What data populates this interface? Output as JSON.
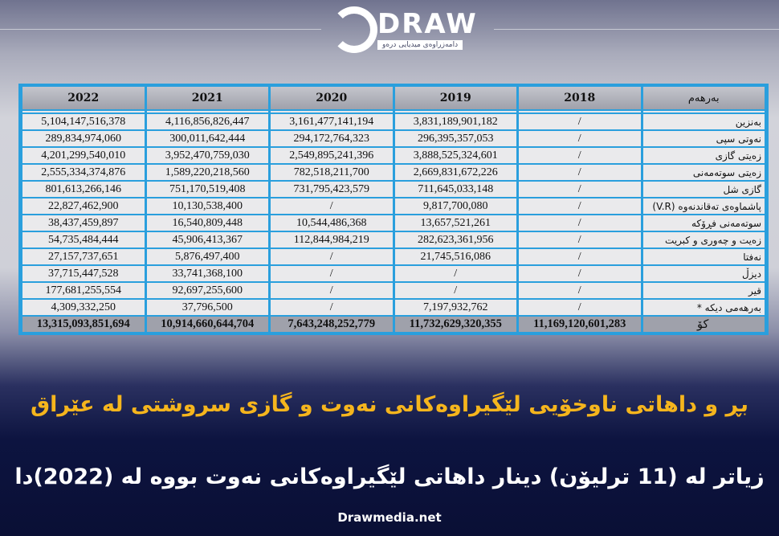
{
  "logo": {
    "text": "DRAW",
    "subtitle": "دامەزراوەی میدیایی درەو"
  },
  "table": {
    "headers": [
      "بەرهەم",
      "2018",
      "2019",
      "2020",
      "2021",
      "2022"
    ],
    "rows": [
      [
        "بەنزین",
        "/",
        "3,831,189,901,182",
        "3,161,477,141,194",
        "4,116,856,826,447",
        "5,104,147,516,378"
      ],
      [
        "نەوتی سپی",
        "/",
        "296,395,357,053",
        "294,172,764,323",
        "300,011,642,444",
        "289,834,974,060"
      ],
      [
        "زەیتی گازی",
        "/",
        "3,888,525,324,601",
        "2,549,895,241,396",
        "3,952,470,759,030",
        "4,201,299,540,010"
      ],
      [
        "زەیتی سوتەمەنی",
        "/",
        "2,669,831,672,226",
        "782,518,211,700",
        "1,589,220,218,560",
        "2,555,334,374,876"
      ],
      [
        "گازی شل",
        "/",
        "711,645,033,148",
        "731,795,423,579",
        "751,170,519,408",
        "801,613,266,146"
      ],
      [
        "پاشماوەی تەقاندنەوە (V.R)",
        "/",
        "9,817,700,080",
        "/",
        "10,130,538,400",
        "22,827,462,900"
      ],
      [
        "سوتەمەنی فڕۆکە",
        "/",
        "13,657,521,261",
        "10,544,486,368",
        "16,540,809,448",
        "38,437,459,897"
      ],
      [
        "زەیت و چەوری و کبریت",
        "/",
        "282,623,361,956",
        "112,844,984,219",
        "45,906,413,367",
        "54,735,484,444"
      ],
      [
        "نەفتا",
        "/",
        "21,745,516,086",
        "/",
        "5,876,497,400",
        "27,157,737,651"
      ],
      [
        "دیزڵ",
        "/",
        "/",
        "/",
        "33,741,368,100",
        "37,715,447,528"
      ],
      [
        "قیر",
        "/",
        "/",
        "/",
        "92,697,255,600",
        "177,681,255,554"
      ],
      [
        "بەرهەمی دیکە *",
        "/",
        "7,197,932,762",
        "/",
        "37,796,500",
        "4,309,332,250"
      ]
    ],
    "total": [
      "کۆ",
      "11,169,120,601,283",
      "11,732,629,320,355",
      "7,643,248,252,779",
      "10,914,660,644,704",
      "13,315,093,851,694"
    ]
  },
  "title": "بڕ و داهاتی ناوخۆیی لێگیراوەکانی نەوت و گازی سروشتی لە عێراق",
  "subtitle": "زیاتر لە (11 ترلیۆن) دینار داهاتی لێگیراوەکانی نەوت  بووە لە (2022)دا",
  "footer": "Drawmedia.net",
  "colors": {
    "title": "#f5b51d",
    "table_border": "#2a9fdd",
    "background_bottom": "#0a0f35"
  }
}
